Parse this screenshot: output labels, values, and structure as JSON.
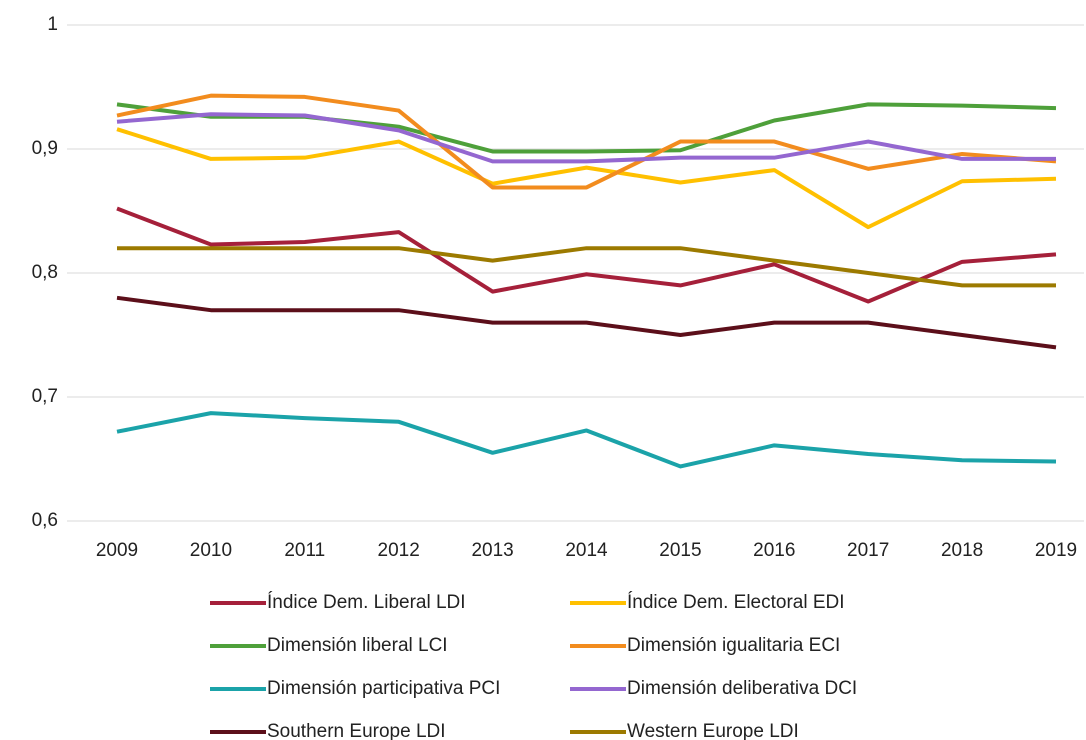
{
  "chart_data": {
    "type": "line",
    "categories": [
      "2009",
      "2010",
      "2011",
      "2012",
      "2013",
      "2014",
      "2015",
      "2016",
      "2017",
      "2018",
      "2019"
    ],
    "series": [
      {
        "name": "Índice Dem. Liberal LDI",
        "color": "#a5203a",
        "values": [
          0.852,
          0.823,
          0.825,
          0.833,
          0.785,
          0.799,
          0.79,
          0.807,
          0.777,
          0.809,
          0.815
        ]
      },
      {
        "name": "Índice Dem. Electoral EDI",
        "color": "#ffc000",
        "values": [
          0.916,
          0.892,
          0.893,
          0.906,
          0.872,
          0.885,
          0.873,
          0.883,
          0.837,
          0.874,
          0.876
        ]
      },
      {
        "name": "Dimensión liberal LCI",
        "color": "#4ea03a",
        "values": [
          0.936,
          0.926,
          0.926,
          0.918,
          0.898,
          0.898,
          0.899,
          0.923,
          0.936,
          0.935,
          0.933
        ]
      },
      {
        "name": "Dimensión igualitaria ECI",
        "color": "#f28c1e",
        "values": [
          0.927,
          0.943,
          0.942,
          0.931,
          0.869,
          0.869,
          0.906,
          0.906,
          0.884,
          0.896,
          0.89
        ]
      },
      {
        "name": "Dimensión participativa PCI",
        "color": "#1ba3a9",
        "values": [
          0.672,
          0.687,
          0.683,
          0.68,
          0.655,
          0.673,
          0.644,
          0.661,
          0.654,
          0.649,
          0.648
        ]
      },
      {
        "name": "Dimensión deliberativa DCI",
        "color": "#9467d0",
        "values": [
          0.922,
          0.928,
          0.927,
          0.915,
          0.89,
          0.89,
          0.893,
          0.893,
          0.906,
          0.892,
          0.892
        ]
      },
      {
        "name": "Southern Europe LDI",
        "color": "#5c0f1a",
        "values": [
          0.78,
          0.77,
          0.77,
          0.77,
          0.76,
          0.76,
          0.75,
          0.76,
          0.76,
          0.75,
          0.74
        ]
      },
      {
        "name": "Western Europe LDI",
        "color": "#9c7a00",
        "values": [
          0.82,
          0.82,
          0.82,
          0.82,
          0.81,
          0.82,
          0.82,
          0.81,
          0.8,
          0.79,
          0.79
        ]
      }
    ],
    "ylim": [
      0.6,
      1
    ],
    "yticks": [
      {
        "value": 0.6,
        "label": "0,6"
      },
      {
        "value": 0.7,
        "label": "0,7"
      },
      {
        "value": 0.8,
        "label": "0,8"
      },
      {
        "value": 0.9,
        "label": "0,9"
      },
      1
    ],
    "grid": true,
    "legend": "bottom"
  }
}
